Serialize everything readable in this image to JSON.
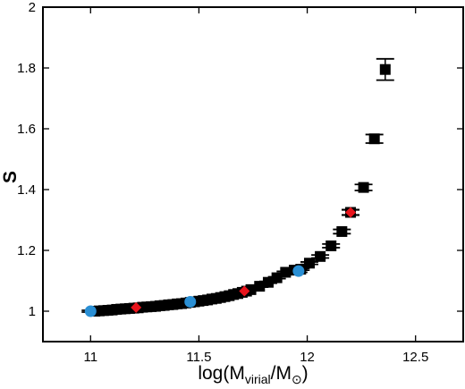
{
  "chart_data": {
    "type": "scatter",
    "title": "",
    "xlabel": {
      "base": "log(M",
      "sub1": "virial",
      "mid": "/M",
      "sun_symbol": "⊙",
      "end": ")"
    },
    "ylabel": "S",
    "xlim": [
      10.78,
      12.72
    ],
    "ylim": [
      0.9,
      2.0
    ],
    "x_ticks": [
      {
        "value": 11,
        "label": "11"
      },
      {
        "value": 11.5,
        "label": "11.5"
      },
      {
        "value": 12,
        "label": "12"
      },
      {
        "value": 12.5,
        "label": "12.5"
      }
    ],
    "y_ticks": [
      {
        "value": 1,
        "label": "1"
      },
      {
        "value": 1.2,
        "label": "1.2"
      },
      {
        "value": 1.4,
        "label": "1.4"
      },
      {
        "value": 1.6,
        "label": "1.6"
      },
      {
        "value": 1.8,
        "label": "1.8"
      },
      {
        "value": 2,
        "label": "2"
      }
    ],
    "grid": false,
    "colors": {
      "black_series": "#000000",
      "red_series": "#e8141c",
      "blue_series": "#2a8fd4"
    },
    "series": [
      {
        "marker": "square",
        "color": "#000000",
        "x": [
          11.02,
          11.04,
          11.06,
          11.08,
          11.1,
          11.12,
          11.14,
          11.16,
          11.18,
          11.2,
          11.22,
          11.24,
          11.26,
          11.28,
          11.3,
          11.32,
          11.34,
          11.36,
          11.38,
          11.4,
          11.42,
          11.44,
          11.46,
          11.48,
          11.5,
          11.52,
          11.54,
          11.56,
          11.58,
          11.6,
          11.62,
          11.64,
          11.66,
          11.68,
          11.7,
          11.72,
          11.74,
          11.78,
          11.82,
          11.86,
          11.9,
          11.94,
          11.97,
          12.01,
          12.06,
          12.11,
          12.16,
          12.2,
          12.26,
          12.31,
          12.36
        ],
        "y": [
          1.0,
          1.001,
          1.002,
          1.003,
          1.004,
          1.006,
          1.007,
          1.008,
          1.009,
          1.01,
          1.011,
          1.013,
          1.014,
          1.015,
          1.016,
          1.018,
          1.019,
          1.021,
          1.022,
          1.024,
          1.025,
          1.027,
          1.029,
          1.031,
          1.033,
          1.035,
          1.037,
          1.04,
          1.042,
          1.045,
          1.048,
          1.051,
          1.055,
          1.058,
          1.062,
          1.066,
          1.071,
          1.082,
          1.095,
          1.11,
          1.128,
          1.135,
          1.138,
          1.158,
          1.18,
          1.215,
          1.262,
          1.325,
          1.407,
          1.567,
          1.795
        ],
        "yerr": [
          0.003,
          0.003,
          0.003,
          0.003,
          0.003,
          0.003,
          0.003,
          0.003,
          0.003,
          0.003,
          0.003,
          0.003,
          0.003,
          0.003,
          0.003,
          0.003,
          0.003,
          0.003,
          0.003,
          0.003,
          0.003,
          0.003,
          0.003,
          0.003,
          0.003,
          0.003,
          0.003,
          0.003,
          0.003,
          0.003,
          0.003,
          0.003,
          0.003,
          0.003,
          0.003,
          0.003,
          0.003,
          0.003,
          0.003,
          0.003,
          0.003,
          0.003,
          0.003,
          0.004,
          0.005,
          0.006,
          0.007,
          0.008,
          0.01,
          0.014,
          0.035
        ]
      },
      {
        "marker": "diamond",
        "color": "#e8141c",
        "x": [
          11.21,
          11.71,
          12.2
        ],
        "y": [
          1.012,
          1.066,
          1.325
        ],
        "yerr": [
          0.003,
          0.003,
          0.009
        ]
      },
      {
        "marker": "circle",
        "color": "#2a8fd4",
        "x": [
          11.0,
          11.46,
          11.96
        ],
        "y": [
          1.0,
          1.031,
          1.132
        ],
        "yerr": [
          0.003,
          0.003,
          0.004
        ]
      }
    ]
  }
}
